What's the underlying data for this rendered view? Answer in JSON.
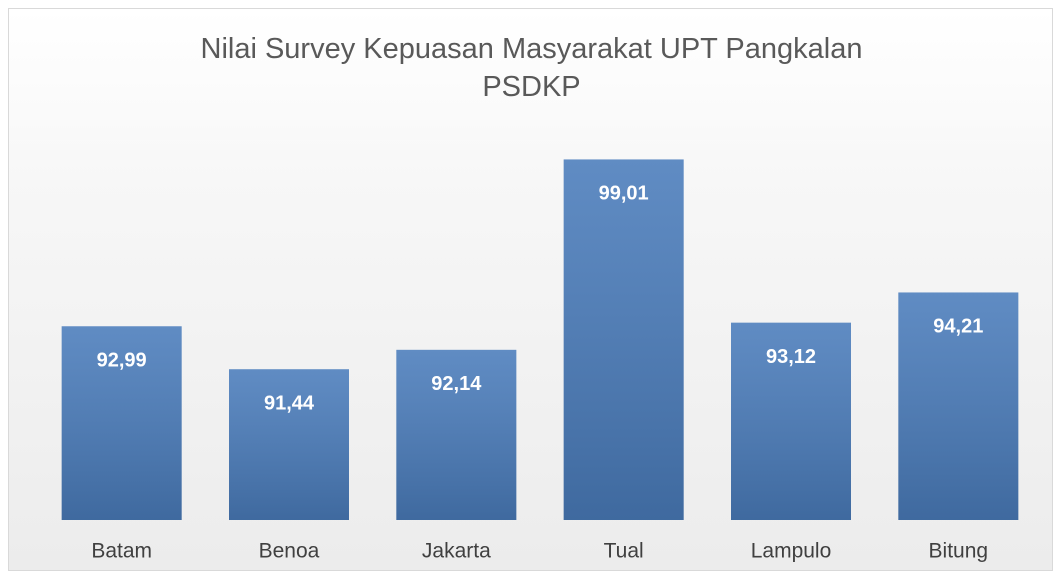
{
  "chart_data": {
    "type": "bar",
    "title": "Nilai Survey Kepuasan Masyarakat UPT Pangkalan PSDKP",
    "categories": [
      "Batam",
      "Benoa",
      "Jakarta",
      "Tual",
      "Lampulo",
      "Bitung"
    ],
    "values": [
      92.99,
      91.44,
      92.14,
      99.01,
      93.12,
      94.21
    ],
    "value_labels": [
      "92,99",
      "91,44",
      "92,14",
      "99,01",
      "93,12",
      "94,21"
    ],
    "color": "#4a7cbb",
    "ylim": [
      86,
      100
    ]
  }
}
